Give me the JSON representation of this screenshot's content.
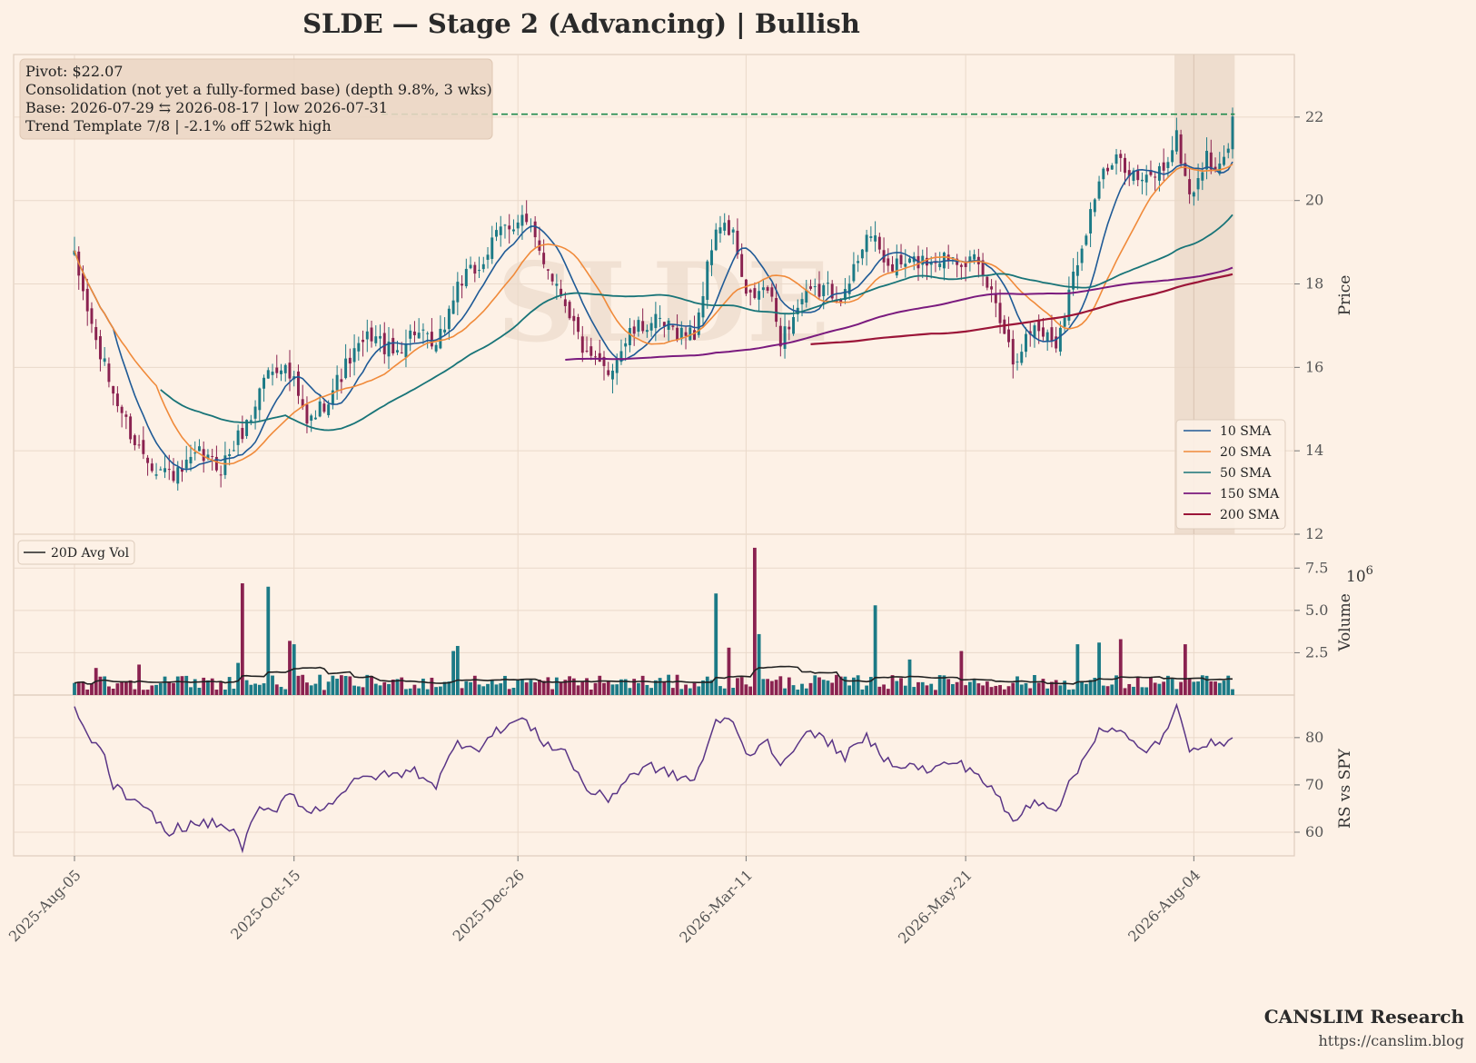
{
  "header": {
    "title": "SLDE  —  Stage 2 (Advancing)  |  Bullish",
    "watermark": "SLDE"
  },
  "info_box": {
    "lines": [
      "Pivot: $22.07",
      "Consolidation (not yet a fully-formed base)  (depth 9.8%, 3 wks)",
      "Base: 2026-07-29 ⇆ 2026-08-17  |  low 2026-07-31",
      "Trend Template 7/8  |  -2.1% off 52wk high"
    ]
  },
  "footer": {
    "brand": "CANSLIM Research",
    "url": "https://canslim.blog"
  },
  "colors": {
    "background": "#fdf1e6",
    "up": "#1b7a86",
    "down": "#8a2250",
    "sma10": "#1f5a96",
    "sma20": "#f08a3a",
    "sma50": "#187478",
    "sma150": "#7a1a7e",
    "sma200": "#9b1538",
    "pivot": "#1f8a4c",
    "rs": "#5a3586",
    "avgvol": "#222222",
    "base_shade": "#e8d6c6"
  },
  "chart_data": [
    {
      "type": "candlestick",
      "panel": "price",
      "ylabel": "Price",
      "ylim": [
        12,
        23.5
      ],
      "yticks": [
        12,
        14,
        16,
        18,
        20,
        22
      ],
      "x_tick_labels": [
        "2025-Aug-05",
        "2025-Oct-15",
        "2025-Dec-26",
        "2026-Mar-11",
        "2026-May-21",
        "2026-Aug-04"
      ],
      "pivot": 22.07,
      "base_window": [
        "2026-07-29",
        "2026-08-17"
      ],
      "legend": [
        "10 SMA",
        "20 SMA",
        "50 SMA",
        "150 SMA",
        "200 SMA"
      ],
      "legend_position": "bottom-right",
      "close_anchors": [
        [
          "2025-08-05",
          18.6
        ],
        [
          "2025-08-08",
          17.4
        ],
        [
          "2025-08-12",
          16.6
        ],
        [
          "2025-08-18",
          15.4
        ],
        [
          "2025-08-25",
          14.2
        ],
        [
          "2025-09-01",
          13.6
        ],
        [
          "2025-09-08",
          13.4
        ],
        [
          "2025-09-15",
          13.9
        ],
        [
          "2025-09-22",
          13.6
        ],
        [
          "2025-09-26",
          14.3
        ],
        [
          "2025-10-01",
          14.8
        ],
        [
          "2025-10-06",
          15.8
        ],
        [
          "2025-10-10",
          16.1
        ],
        [
          "2025-10-15",
          15.6
        ],
        [
          "2025-10-20",
          14.6
        ],
        [
          "2025-10-27",
          15.3
        ],
        [
          "2025-11-03",
          16.2
        ],
        [
          "2025-11-10",
          16.8
        ],
        [
          "2025-11-17",
          16.3
        ],
        [
          "2025-11-24",
          16.9
        ],
        [
          "2025-12-01",
          16.4
        ],
        [
          "2025-12-08",
          18.0
        ],
        [
          "2025-12-15",
          18.4
        ],
        [
          "2025-12-22",
          19.3
        ],
        [
          "2025-12-29",
          19.6
        ],
        [
          "2026-01-05",
          18.6
        ],
        [
          "2026-01-12",
          17.6
        ],
        [
          "2026-01-19",
          16.2
        ],
        [
          "2026-01-26",
          15.9
        ],
        [
          "2026-02-02",
          16.8
        ],
        [
          "2026-02-09",
          17.1
        ],
        [
          "2026-02-16",
          16.9
        ],
        [
          "2026-02-23",
          16.8
        ],
        [
          "2026-03-02",
          19.4
        ],
        [
          "2026-03-06",
          19.2
        ],
        [
          "2026-03-11",
          17.6
        ],
        [
          "2026-03-18",
          17.9
        ],
        [
          "2026-03-23",
          16.7
        ],
        [
          "2026-03-30",
          17.6
        ],
        [
          "2026-04-06",
          17.9
        ],
        [
          "2026-04-13",
          17.7
        ],
        [
          "2026-04-20",
          19.3
        ],
        [
          "2026-04-27",
          18.4
        ],
        [
          "2026-05-04",
          18.5
        ],
        [
          "2026-05-11",
          18.6
        ],
        [
          "2026-05-18",
          18.7
        ],
        [
          "2026-05-25",
          18.5
        ],
        [
          "2026-06-01",
          17.6
        ],
        [
          "2026-06-05",
          16.2
        ],
        [
          "2026-06-12",
          17.0
        ],
        [
          "2026-06-19",
          16.6
        ],
        [
          "2026-06-26",
          18.6
        ],
        [
          "2026-07-03",
          20.5
        ],
        [
          "2026-07-10",
          21.0
        ],
        [
          "2026-07-17",
          20.4
        ],
        [
          "2026-07-24",
          20.8
        ],
        [
          "2026-07-29",
          21.5
        ],
        [
          "2026-08-03",
          20.1
        ],
        [
          "2026-08-08",
          21.0
        ],
        [
          "2026-08-12",
          20.7
        ],
        [
          "2026-08-17",
          21.8
        ]
      ],
      "sma150_start": "2026-01-12",
      "sma200_start": "2026-04-01"
    },
    {
      "type": "bar",
      "panel": "volume",
      "ylabel": "Volume",
      "y_unit": "10^6",
      "ylim": [
        0,
        9.5
      ],
      "yticks": [
        2.5,
        5.0,
        7.5
      ],
      "ytick_labels": [
        "2.5",
        "5.0",
        "7.5"
      ],
      "legend": [
        "20D Avg Vol"
      ],
      "legend_position": "top-left",
      "spikes": [
        [
          "2025-08-12",
          1.6
        ],
        [
          "2025-08-26",
          1.8
        ],
        [
          "2025-09-26",
          1.9
        ],
        [
          "2025-09-29",
          6.6
        ],
        [
          "2025-10-07",
          6.4
        ],
        [
          "2025-10-14",
          3.2
        ],
        [
          "2025-10-15",
          3.0
        ],
        [
          "2025-12-05",
          2.6
        ],
        [
          "2025-12-08",
          2.9
        ],
        [
          "2026-03-02",
          6.0
        ],
        [
          "2026-03-05",
          2.8
        ],
        [
          "2026-03-13",
          8.7
        ],
        [
          "2026-03-16",
          3.6
        ],
        [
          "2026-04-22",
          5.3
        ],
        [
          "2026-05-04",
          2.1
        ],
        [
          "2026-05-20",
          2.6
        ],
        [
          "2026-06-26",
          3.0
        ],
        [
          "2026-07-03",
          3.1
        ],
        [
          "2026-07-10",
          3.3
        ],
        [
          "2026-07-31",
          3.0
        ]
      ]
    },
    {
      "type": "line",
      "panel": "rs",
      "ylabel": "RS vs SPY",
      "ylim": [
        55,
        89
      ],
      "yticks": [
        60,
        70,
        80
      ],
      "anchors": [
        [
          "2025-08-05",
          86
        ],
        [
          "2025-08-09",
          80
        ],
        [
          "2025-08-13",
          78
        ],
        [
          "2025-08-18",
          70
        ],
        [
          "2025-08-25",
          66
        ],
        [
          "2025-09-01",
          63
        ],
        [
          "2025-09-04",
          59
        ],
        [
          "2025-09-08",
          61
        ],
        [
          "2025-09-17",
          62
        ],
        [
          "2025-09-24",
          61
        ],
        [
          "2025-09-29",
          57
        ],
        [
          "2025-10-03",
          65
        ],
        [
          "2025-10-08",
          64
        ],
        [
          "2025-10-14",
          69
        ],
        [
          "2025-10-20",
          64
        ],
        [
          "2025-10-27",
          66
        ],
        [
          "2025-11-03",
          70
        ],
        [
          "2025-11-10",
          72
        ],
        [
          "2025-11-17",
          72
        ],
        [
          "2025-11-24",
          73
        ],
        [
          "2025-12-01",
          70
        ],
        [
          "2025-12-08",
          79
        ],
        [
          "2025-12-15",
          78
        ],
        [
          "2025-12-22",
          82
        ],
        [
          "2025-12-29",
          84
        ],
        [
          "2026-01-05",
          79
        ],
        [
          "2026-01-12",
          77
        ],
        [
          "2026-01-19",
          69
        ],
        [
          "2026-01-26",
          67
        ],
        [
          "2026-02-02",
          72
        ],
        [
          "2026-02-09",
          74
        ],
        [
          "2026-02-16",
          72
        ],
        [
          "2026-02-23",
          71
        ],
        [
          "2026-03-02",
          83
        ],
        [
          "2026-03-06",
          84
        ],
        [
          "2026-03-11",
          76
        ],
        [
          "2026-03-18",
          80
        ],
        [
          "2026-03-23",
          73
        ],
        [
          "2026-03-30",
          81
        ],
        [
          "2026-04-06",
          80
        ],
        [
          "2026-04-13",
          76
        ],
        [
          "2026-04-20",
          80
        ],
        [
          "2026-04-27",
          75
        ],
        [
          "2026-05-04",
          74
        ],
        [
          "2026-05-11",
          73
        ],
        [
          "2026-05-18",
          75
        ],
        [
          "2026-05-25",
          73
        ],
        [
          "2026-06-01",
          68
        ],
        [
          "2026-06-05",
          62
        ],
        [
          "2026-06-12",
          67
        ],
        [
          "2026-06-19",
          65
        ],
        [
          "2026-06-26",
          73
        ],
        [
          "2026-07-03",
          82
        ],
        [
          "2026-07-10",
          81
        ],
        [
          "2026-07-17",
          77
        ],
        [
          "2026-07-24",
          80
        ],
        [
          "2026-07-29",
          86
        ],
        [
          "2026-08-03",
          78
        ],
        [
          "2026-08-08",
          79
        ],
        [
          "2026-08-12",
          78
        ],
        [
          "2026-08-17",
          81
        ]
      ]
    }
  ]
}
